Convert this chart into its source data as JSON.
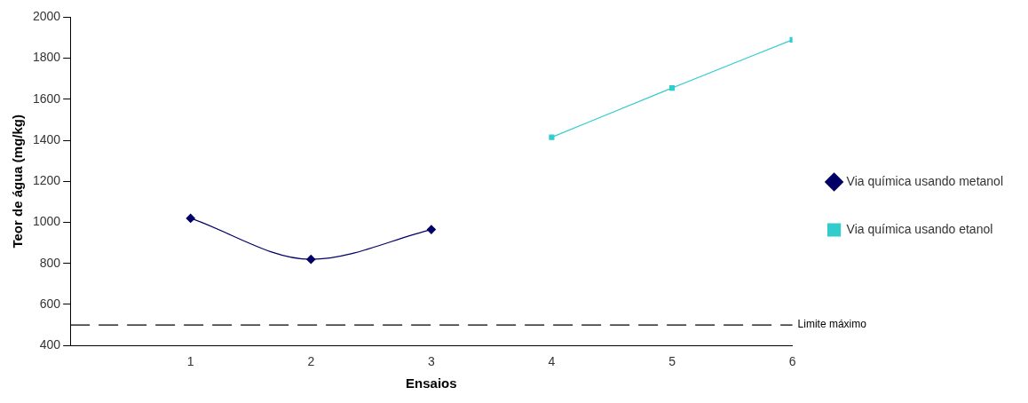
{
  "chart_data": {
    "type": "line",
    "xlabel": "Ensaios",
    "ylabel": "Teor de água (mg/kg)",
    "series": [
      {
        "name": "Via química usando metanol",
        "color": "#000066",
        "marker": "diamond",
        "x": [
          1,
          2,
          3
        ],
        "values": [
          1020,
          820,
          965
        ]
      },
      {
        "name": "Via química usando etanol",
        "color": "#33cccc",
        "marker": "square",
        "x": [
          4,
          5,
          6
        ],
        "values": [
          1415,
          1655,
          1890
        ]
      }
    ],
    "xlim": [
      0,
      6
    ],
    "xticks": [
      1,
      2,
      3,
      4,
      5,
      6
    ],
    "ylim": [
      400,
      2000
    ],
    "yticks": [
      400,
      600,
      800,
      1000,
      1200,
      1400,
      1600,
      1800,
      2000
    ],
    "ref_lines": [
      {
        "axis": "y",
        "value": 500,
        "label": "Limite máximo",
        "color": "#000000",
        "line_style": "dashed"
      }
    ],
    "grid": false,
    "legend": "right",
    "line_style": "solid"
  }
}
